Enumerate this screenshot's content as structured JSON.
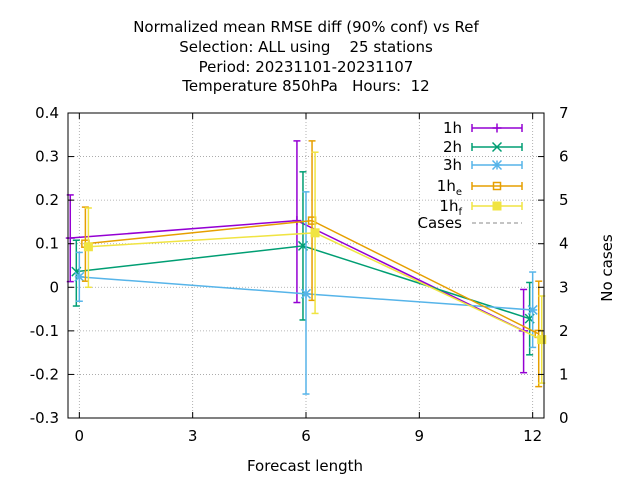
{
  "chart_data": {
    "type": "line",
    "title_lines": [
      "Normalized mean RMSE diff (90% conf) vs Ref",
      "Selection: ALL using    25 stations",
      "Period: 20231101-20231107",
      "Temperature 850hPa   Hours:  12"
    ],
    "xlabel": "Forecast length",
    "ylabel": "",
    "y2label": "No cases",
    "xlim": [
      -0.3,
      12.3
    ],
    "ylim": [
      -0.3,
      0.4
    ],
    "y2lim": [
      0,
      7
    ],
    "xticks": [
      0,
      3,
      6,
      9,
      12
    ],
    "yticks": [
      -0.3,
      -0.2,
      -0.1,
      0,
      0.1,
      0.2,
      0.3,
      0.4
    ],
    "ytick_labels": [
      "-0.3",
      "-0.2",
      "-0.1",
      "0",
      "0.1",
      "0.2",
      "0.3",
      "0.4"
    ],
    "y2ticks": [
      0,
      1,
      2,
      3,
      4,
      5,
      6,
      7
    ],
    "grid": true,
    "legend_position": "top-right",
    "series": [
      {
        "name": "1h",
        "sub": "",
        "color": "#9400d3",
        "marker": "plus",
        "x": [
          -0.24,
          5.76,
          11.76
        ],
        "y": [
          0.113,
          0.153,
          -0.1
        ],
        "lo": [
          0.013,
          -0.035,
          -0.196
        ],
        "hi": [
          0.212,
          0.336,
          -0.005
        ]
      },
      {
        "name": "2h",
        "sub": "",
        "color": "#009e73",
        "marker": "x",
        "x": [
          -0.08,
          5.92,
          11.92
        ],
        "y": [
          0.036,
          0.095,
          -0.072
        ],
        "lo": [
          -0.043,
          -0.075,
          -0.155
        ],
        "hi": [
          0.108,
          0.265,
          0.011
        ]
      },
      {
        "name": "3h",
        "sub": "",
        "color": "#56b4e9",
        "marker": "star",
        "x": [
          0.0,
          6.0,
          12.0
        ],
        "y": [
          0.024,
          -0.015,
          -0.052
        ],
        "lo": [
          -0.032,
          -0.245,
          -0.138
        ],
        "hi": [
          0.08,
          0.219,
          0.035
        ]
      },
      {
        "name": "1h",
        "sub": "e",
        "color": "#e69f00",
        "marker": "box",
        "x": [
          0.16,
          6.16,
          12.16
        ],
        "y": [
          0.1,
          0.153,
          -0.107
        ],
        "lo": [
          0.014,
          -0.03,
          -0.228
        ],
        "hi": [
          0.184,
          0.336,
          0.014
        ]
      },
      {
        "name": "1h",
        "sub": "f",
        "color": "#f0e442",
        "marker": "boxfill",
        "x": [
          0.24,
          6.24,
          12.24
        ],
        "y": [
          0.093,
          0.125,
          -0.12
        ],
        "lo": [
          0.0,
          -0.06,
          -0.22
        ],
        "hi": [
          0.182,
          0.31,
          -0.02
        ]
      }
    ],
    "cases": {
      "name": "Cases",
      "color": "#a0a0a0",
      "x": [
        0,
        6,
        12
      ],
      "values": []
    }
  }
}
